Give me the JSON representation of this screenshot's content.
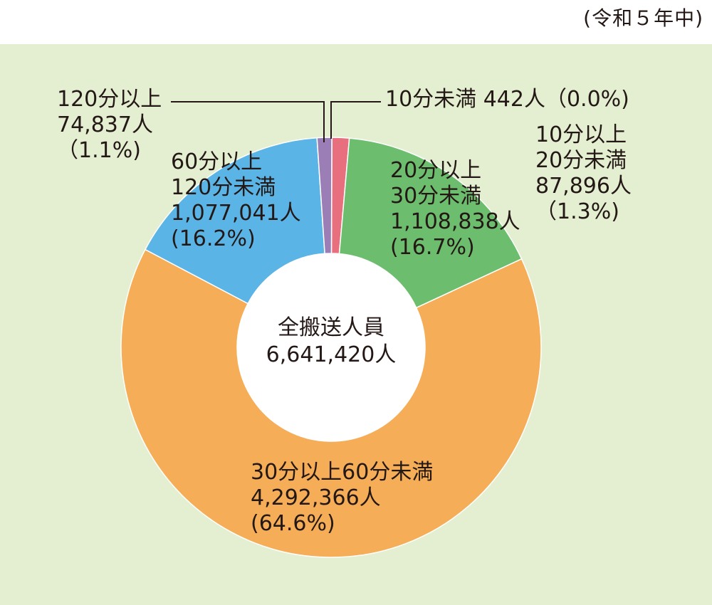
{
  "period_note": "(令和５年中)",
  "center": {
    "line1": "全搬送人員",
    "line2": "6,641,420人"
  },
  "colors": {
    "background": "#e3efd0",
    "lt10": "#c9302c",
    "10to20": "#e8707e",
    "20to30": "#6dbd6e",
    "30to60": "#f5ad57",
    "60to120": "#5ab4e5",
    "ge120": "#9b7eb6",
    "leader": "#231815"
  },
  "chart_data": {
    "type": "pie",
    "donut": true,
    "title": "",
    "total_label": "全搬送人員",
    "total": 6641420,
    "slices": [
      {
        "key": "lt10",
        "label": "10分未満",
        "value": 442,
        "percent": 0.0,
        "color": "#c9302c",
        "text": {
          "lines": [
            "10分未満 442人（0.0%)"
          ]
        }
      },
      {
        "key": "10to20",
        "label": "10分以上20分未満",
        "value": 87896,
        "percent": 1.3,
        "color": "#e8707e",
        "text": {
          "lines": [
            "10分以上",
            "20分未満",
            "87,896人",
            "（1.3%)"
          ]
        }
      },
      {
        "key": "20to30",
        "label": "20分以上30分未満",
        "value": 1108838,
        "percent": 16.7,
        "color": "#6dbd6e",
        "text": {
          "lines": [
            "20分以上",
            "30分未満",
            "1,108,838人",
            "(16.7%)"
          ]
        }
      },
      {
        "key": "30to60",
        "label": "30分以上60分未満",
        "value": 4292366,
        "percent": 64.6,
        "color": "#f5ad57",
        "text": {
          "lines": [
            "30分以上60分未満",
            "4,292,366人",
            "(64.6%)"
          ]
        }
      },
      {
        "key": "60to120",
        "label": "60分以上120分未満",
        "value": 1077041,
        "percent": 16.2,
        "color": "#5ab4e5",
        "text": {
          "lines": [
            "60分以上",
            "120分未満",
            "1,077,041人",
            "(16.2%)"
          ]
        }
      },
      {
        "key": "ge120",
        "label": "120分以上",
        "value": 74837,
        "percent": 1.1,
        "color": "#9b7eb6",
        "text": {
          "lines": [
            "120分以上",
            "74,837人",
            "（1.1%)"
          ]
        }
      }
    ]
  }
}
